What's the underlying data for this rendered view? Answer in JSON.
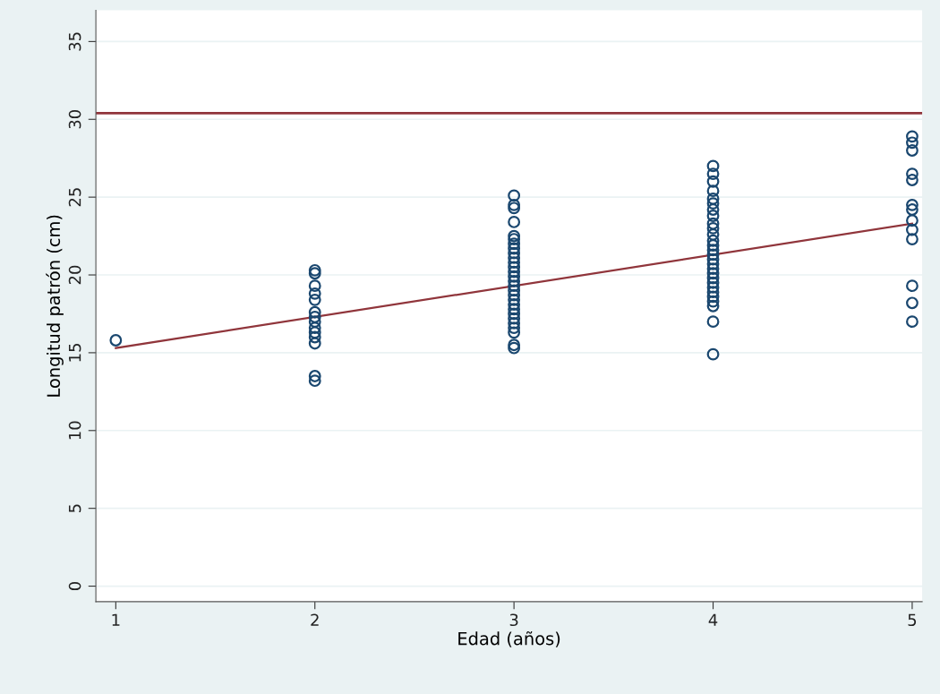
{
  "chart_data": {
    "type": "scatter",
    "xlabel": "Edad (años)",
    "ylabel": "Longitud patrón (cm)",
    "xlim": [
      0.9,
      5.05
    ],
    "xticks": [
      1,
      2,
      3,
      4,
      5
    ],
    "ylim": [
      -1,
      37
    ],
    "yticks": [
      0,
      5,
      10,
      15,
      20,
      25,
      30,
      35
    ],
    "grid": "y",
    "legend": false,
    "series": [
      {
        "marker": "circle",
        "color": "#1a476f",
        "x": [
          1,
          2,
          2,
          2,
          2,
          2,
          2,
          2,
          2,
          2,
          2,
          2,
          2,
          2,
          2,
          3,
          3,
          3,
          3,
          3,
          3,
          3,
          3,
          3,
          3,
          3,
          3,
          3,
          3,
          3,
          3,
          3,
          3,
          3,
          3,
          3,
          3,
          3,
          3,
          3,
          3,
          3,
          3,
          4,
          4,
          4,
          4,
          4,
          4,
          4,
          4,
          4,
          4,
          4,
          4,
          4,
          4,
          4,
          4,
          4,
          4,
          4,
          4,
          4,
          4,
          4,
          4,
          4,
          4,
          4,
          4,
          5,
          5,
          5,
          5,
          5,
          5,
          5,
          5,
          5,
          5,
          5,
          5,
          5
        ],
        "values": [
          15.8,
          20.3,
          20.1,
          19.3,
          18.8,
          18.4,
          17.6,
          17.3,
          17.0,
          16.6,
          16.3,
          16.0,
          15.6,
          13.5,
          13.2,
          25.1,
          24.5,
          24.3,
          23.4,
          22.5,
          22.3,
          22.0,
          21.7,
          21.4,
          21.1,
          20.8,
          20.5,
          20.2,
          19.9,
          19.6,
          19.3,
          19.0,
          18.7,
          18.4,
          18.1,
          17.8,
          17.5,
          17.2,
          16.9,
          16.6,
          16.3,
          15.5,
          15.3,
          27.0,
          26.5,
          26.0,
          25.4,
          24.9,
          24.6,
          24.2,
          23.8,
          23.3,
          23.0,
          22.6,
          22.2,
          21.9,
          21.6,
          21.3,
          21.0,
          20.7,
          20.4,
          20.1,
          19.8,
          19.5,
          19.2,
          18.9,
          18.6,
          18.3,
          18.0,
          17.0,
          14.9,
          28.9,
          28.5,
          28.0,
          26.5,
          26.1,
          24.5,
          24.2,
          23.5,
          22.9,
          22.3,
          19.3,
          18.2,
          17.0
        ]
      },
      {
        "type": "line",
        "marker": "none",
        "color": "#90353b",
        "x": [
          1,
          5
        ],
        "values": [
          15.3,
          23.3
        ]
      }
    ],
    "ref_lines": [
      {
        "axis": "y",
        "value": 30.4,
        "color": "#90353b"
      }
    ]
  }
}
